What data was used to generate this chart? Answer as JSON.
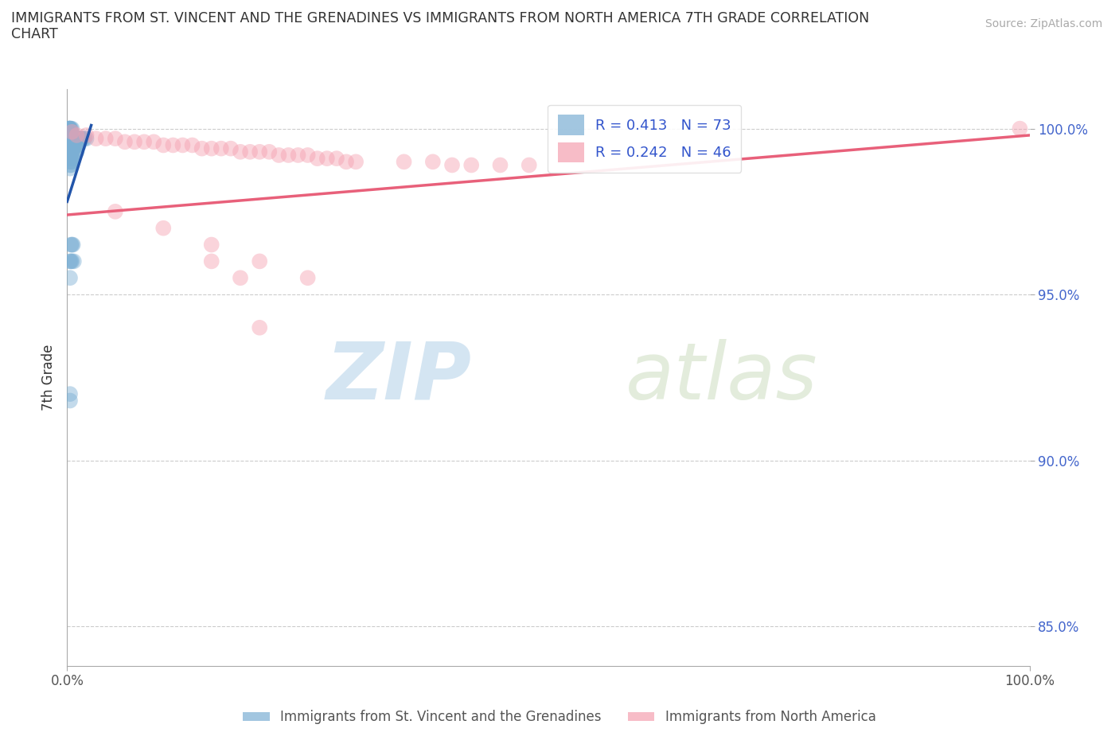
{
  "title_line1": "IMMIGRANTS FROM ST. VINCENT AND THE GRENADINES VS IMMIGRANTS FROM NORTH AMERICA 7TH GRADE CORRELATION",
  "title_line2": "CHART",
  "source": "Source: ZipAtlas.com",
  "ylabel": "7th Grade",
  "blue_R": 0.413,
  "blue_N": 73,
  "pink_R": 0.242,
  "pink_N": 46,
  "blue_color": "#7bafd4",
  "pink_color": "#f4a0b0",
  "blue_line_color": "#2255aa",
  "pink_line_color": "#e8607a",
  "legend_label_blue": "Immigrants from St. Vincent and the Grenadines",
  "legend_label_pink": "Immigrants from North America",
  "watermark_zip": "ZIP",
  "watermark_atlas": "atlas",
  "blue_x": [
    0.002,
    0.002,
    0.002,
    0.002,
    0.003,
    0.003,
    0.003,
    0.003,
    0.003,
    0.003,
    0.003,
    0.003,
    0.003,
    0.003,
    0.003,
    0.003,
    0.003,
    0.003,
    0.003,
    0.004,
    0.004,
    0.004,
    0.004,
    0.004,
    0.004,
    0.004,
    0.004,
    0.004,
    0.004,
    0.004,
    0.004,
    0.005,
    0.005,
    0.005,
    0.005,
    0.005,
    0.005,
    0.005,
    0.006,
    0.006,
    0.006,
    0.006,
    0.006,
    0.007,
    0.007,
    0.007,
    0.008,
    0.008,
    0.009,
    0.009,
    0.01,
    0.01,
    0.01,
    0.011,
    0.011,
    0.012,
    0.012,
    0.013,
    0.014,
    0.015,
    0.016,
    0.018,
    0.02,
    0.003,
    0.003,
    0.004,
    0.004,
    0.005,
    0.005,
    0.006,
    0.007,
    0.003,
    0.003
  ],
  "blue_y": [
    1.0,
    1.0,
    1.0,
    1.0,
    1.0,
    1.0,
    1.0,
    0.998,
    0.997,
    0.997,
    0.996,
    0.995,
    0.994,
    0.993,
    0.992,
    0.991,
    0.99,
    0.989,
    0.988,
    1.0,
    0.999,
    0.998,
    0.997,
    0.996,
    0.995,
    0.994,
    0.993,
    0.992,
    0.991,
    0.99,
    0.989,
    1.0,
    0.998,
    0.997,
    0.995,
    0.993,
    0.991,
    0.99,
    0.998,
    0.997,
    0.995,
    0.993,
    0.991,
    0.997,
    0.995,
    0.993,
    0.997,
    0.995,
    0.997,
    0.995,
    0.997,
    0.995,
    0.993,
    0.997,
    0.995,
    0.997,
    0.995,
    0.997,
    0.997,
    0.997,
    0.997,
    0.997,
    0.997,
    0.96,
    0.955,
    0.965,
    0.96,
    0.965,
    0.96,
    0.965,
    0.96,
    0.92,
    0.918
  ],
  "pink_x": [
    0.005,
    0.01,
    0.02,
    0.03,
    0.04,
    0.05,
    0.06,
    0.07,
    0.08,
    0.09,
    0.1,
    0.11,
    0.12,
    0.13,
    0.14,
    0.15,
    0.16,
    0.17,
    0.18,
    0.19,
    0.2,
    0.21,
    0.22,
    0.23,
    0.24,
    0.25,
    0.26,
    0.27,
    0.28,
    0.29,
    0.3,
    0.35,
    0.38,
    0.4,
    0.42,
    0.45,
    0.48,
    0.99,
    0.05,
    0.1,
    0.15,
    0.2,
    0.25,
    0.2,
    0.15,
    0.18
  ],
  "pink_y": [
    0.999,
    0.998,
    0.998,
    0.997,
    0.997,
    0.997,
    0.996,
    0.996,
    0.996,
    0.996,
    0.995,
    0.995,
    0.995,
    0.995,
    0.994,
    0.994,
    0.994,
    0.994,
    0.993,
    0.993,
    0.993,
    0.993,
    0.992,
    0.992,
    0.992,
    0.992,
    0.991,
    0.991,
    0.991,
    0.99,
    0.99,
    0.99,
    0.99,
    0.989,
    0.989,
    0.989,
    0.989,
    1.0,
    0.975,
    0.97,
    0.965,
    0.96,
    0.955,
    0.94,
    0.96,
    0.955
  ],
  "blue_line_x0": 0.0,
  "blue_line_y0": 0.978,
  "blue_line_x1": 0.025,
  "blue_line_y1": 1.001,
  "pink_line_x0": 0.0,
  "pink_line_y0": 0.974,
  "pink_line_x1": 1.0,
  "pink_line_y1": 0.998,
  "xlim": [
    0.0,
    1.0
  ],
  "ylim": [
    0.838,
    1.012
  ],
  "yticks": [
    0.85,
    0.9,
    0.95,
    1.0
  ],
  "ytick_labels": [
    "85.0%",
    "90.0%",
    "95.0%",
    "100.0%"
  ],
  "xticks": [
    0.0,
    1.0
  ],
  "xtick_labels": [
    "0.0%",
    "100.0%"
  ],
  "figsize": [
    14.06,
    9.3
  ],
  "dpi": 100
}
